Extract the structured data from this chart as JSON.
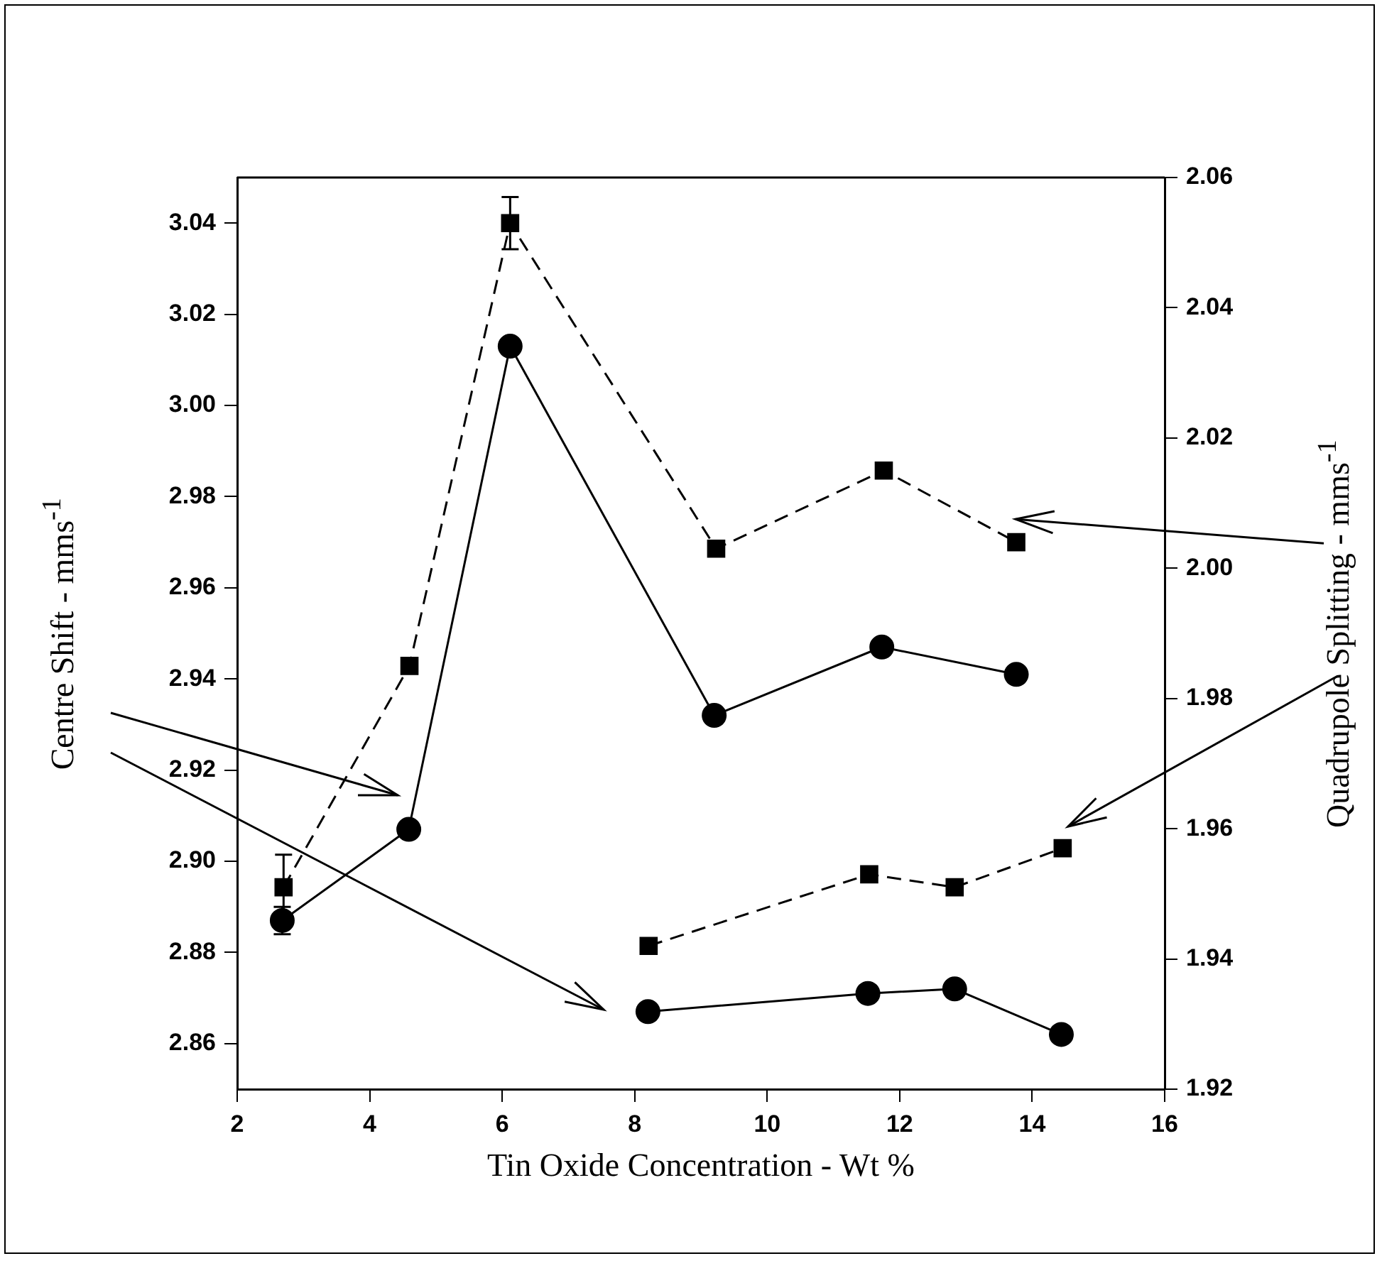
{
  "chart_data": {
    "type": "line",
    "xlabel": "Tin Oxide Concentration - Wt %",
    "ylabel": "Centre Shift - mms$^{-1}$",
    "y2label": "Quadrupole Splitting - mms$^{-1}$",
    "xlim": [
      2,
      16
    ],
    "xticks": [
      2,
      4,
      6,
      8,
      10,
      12,
      14,
      16
    ],
    "ylim": [
      2.85,
      3.05
    ],
    "yticks": [
      2.86,
      2.88,
      {
        "value": 2.9,
        "label": "2.90"
      },
      2.92,
      2.94,
      2.96,
      2.98,
      {
        "value": 3,
        "label": "3.00"
      },
      3.02,
      3.04
    ],
    "y2lim": [
      1.92,
      2.06
    ],
    "y2ticks": [
      1.92,
      1.94,
      1.96,
      1.98,
      {
        "value": 2,
        "label": "2.00"
      },
      2.02,
      2.04,
      2.06
    ],
    "grid": false,
    "legend": false,
    "series": [
      {
        "color": "#000000",
        "marker": "circle",
        "line_style": "solid",
        "x": [
          2.68,
          4.59,
          6.12,
          9.2,
          11.73,
          13.76
        ],
        "values": [
          2.887,
          2.907,
          3.013,
          2.932,
          2.947,
          2.941
        ],
        "errors": [
          0.003,
          null,
          null,
          null,
          null,
          null
        ]
      },
      {
        "color": "#000000",
        "marker": "square",
        "line_style": "dashed",
        "axis": "y2",
        "x": [
          2.7,
          4.6,
          6.12,
          9.23,
          11.76,
          13.76
        ],
        "values": [
          1.951,
          1.985,
          2.053,
          2.003,
          2.015,
          2.004
        ],
        "errors": [
          0.005,
          null,
          0.004,
          null,
          null,
          null
        ]
      },
      {
        "color": "#000000",
        "marker": "square",
        "line_style": "dashed",
        "axis": "y2",
        "x": [
          8.21,
          11.54,
          12.83,
          14.46
        ],
        "values": [
          1.942,
          1.953,
          1.951,
          1.957
        ]
      },
      {
        "color": "#000000",
        "marker": "circle",
        "line_style": "solid",
        "x": [
          8.2,
          11.52,
          12.83,
          14.44
        ],
        "values": [
          2.867,
          2.871,
          2.872,
          2.862
        ]
      }
    ]
  }
}
